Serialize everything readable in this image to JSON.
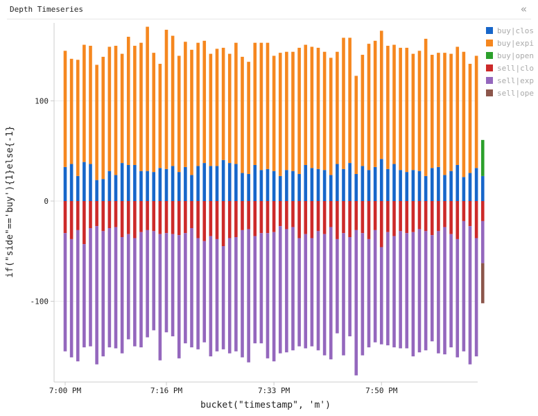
{
  "panel": {
    "title": "Depth Timeseries",
    "collapse_icon": "double-chevron-left-icon"
  },
  "colors": {
    "axis": "#cccccc",
    "tick_text": "#222222",
    "gridline": "#eeeeee"
  },
  "legend": {
    "items": [
      {
        "label": "buy|clos",
        "color": "#1766c9"
      },
      {
        "label": "buy|expi",
        "color": "#f5871f"
      },
      {
        "label": "buy|open",
        "color": "#2ca02c"
      },
      {
        "label": "sell|clo",
        "color": "#cc2a2a"
      },
      {
        "label": "sell|exp",
        "color": "#9467bd"
      },
      {
        "label": "sell|ope",
        "color": "#8c564b"
      }
    ]
  },
  "chart_data": {
    "type": "bar",
    "stacked": true,
    "xlabel": "bucket(\"timestamp\", 'm')",
    "ylabel": "if(\"side\"=='buy'){1}else{-1}",
    "ylim": [
      -180,
      178
    ],
    "yticks": [
      100,
      0,
      -100
    ],
    "x_start_minute": "7:00 PM",
    "x_ticks": [
      {
        "label": "7:00 PM",
        "minute": 0
      },
      {
        "label": "7:16 PM",
        "minute": 16
      },
      {
        "label": "7:33 PM",
        "minute": 33
      },
      {
        "label": "7:50 PM",
        "minute": 50
      }
    ],
    "gridlines": true,
    "series": [
      {
        "name": "buy|clos",
        "color": "#1766c9",
        "values": [
          34,
          37,
          25,
          39,
          37,
          21,
          22,
          30,
          26,
          38,
          36,
          36,
          30,
          30,
          29,
          33,
          32,
          35,
          29,
          34,
          26,
          35,
          38,
          35,
          35,
          41,
          38,
          37,
          28,
          27,
          36,
          31,
          32,
          30,
          25,
          31,
          30,
          27,
          36,
          33,
          32,
          31,
          26,
          37,
          32,
          38,
          27,
          35,
          31,
          34,
          42,
          32,
          37,
          31,
          29,
          31,
          30,
          25,
          33,
          34,
          26,
          30,
          36,
          24,
          28,
          33,
          25
        ]
      },
      {
        "name": "buy|expi",
        "color": "#f5871f",
        "values": [
          116,
          105,
          116,
          117,
          118,
          115,
          122,
          124,
          129,
          109,
          128,
          119,
          128,
          144,
          119,
          104,
          139,
          130,
          116,
          125,
          125,
          123,
          122,
          112,
          117,
          112,
          109,
          121,
          116,
          112,
          122,
          127,
          126,
          115,
          123,
          118,
          119,
          126,
          120,
          121,
          121,
          118,
          117,
          112,
          131,
          125,
          98,
          111,
          126,
          126,
          128,
          123,
          119,
          122,
          124,
          116,
          120,
          137,
          113,
          114,
          122,
          117,
          118,
          125,
          109,
          112,
          0
        ]
      },
      {
        "name": "buy|open",
        "color": "#2ca02c",
        "values": [
          0,
          0,
          0,
          0,
          0,
          0,
          0,
          0,
          0,
          0,
          0,
          0,
          0,
          0,
          0,
          0,
          0,
          0,
          0,
          0,
          0,
          0,
          0,
          0,
          0,
          0,
          0,
          0,
          0,
          0,
          0,
          0,
          0,
          0,
          0,
          0,
          0,
          0,
          0,
          0,
          0,
          0,
          0,
          0,
          0,
          0,
          0,
          0,
          0,
          0,
          0,
          0,
          0,
          0,
          0,
          0,
          0,
          0,
          0,
          0,
          0,
          0,
          0,
          0,
          0,
          0,
          36
        ]
      },
      {
        "name": "sell|clo",
        "color": "#cc2a2a",
        "values": [
          -32,
          -38,
          -29,
          -43,
          -27,
          -25,
          -30,
          -27,
          -26,
          -36,
          -33,
          -37,
          -31,
          -29,
          -30,
          -33,
          -32,
          -33,
          -34,
          -32,
          -27,
          -37,
          -40,
          -35,
          -38,
          -45,
          -37,
          -36,
          -29,
          -28,
          -35,
          -32,
          -32,
          -31,
          -25,
          -28,
          -26,
          -37,
          -33,
          -37,
          -30,
          -33,
          -26,
          -38,
          -32,
          -36,
          -29,
          -32,
          -38,
          -29,
          -46,
          -31,
          -35,
          -30,
          -32,
          -31,
          -28,
          -30,
          -34,
          -30,
          -26,
          -33,
          -38,
          -20,
          -25,
          -37,
          -20
        ]
      },
      {
        "name": "sell|exp",
        "color": "#9467bd",
        "values": [
          -118,
          -118,
          -131,
          -103,
          -118,
          -138,
          -125,
          -119,
          -121,
          -116,
          -105,
          -108,
          -115,
          -107,
          -99,
          -126,
          -99,
          -102,
          -123,
          -110,
          -119,
          -111,
          -101,
          -120,
          -112,
          -103,
          -115,
          -114,
          -127,
          -133,
          -107,
          -110,
          -125,
          -129,
          -127,
          -123,
          -123,
          -108,
          -114,
          -108,
          -119,
          -121,
          -132,
          -94,
          -122,
          -99,
          -145,
          -122,
          -108,
          -112,
          -97,
          -113,
          -111,
          -117,
          -115,
          -124,
          -123,
          -119,
          -106,
          -122,
          -127,
          -113,
          -118,
          -130,
          -138,
          -118,
          -42
        ]
      },
      {
        "name": "sell|ope",
        "color": "#8c564b",
        "values": [
          0,
          0,
          0,
          0,
          0,
          0,
          0,
          0,
          0,
          0,
          0,
          0,
          0,
          0,
          0,
          0,
          0,
          0,
          0,
          0,
          0,
          0,
          0,
          0,
          0,
          0,
          0,
          0,
          0,
          0,
          0,
          0,
          0,
          0,
          0,
          0,
          0,
          0,
          0,
          0,
          0,
          0,
          0,
          0,
          0,
          0,
          0,
          0,
          0,
          0,
          0,
          0,
          0,
          0,
          0,
          0,
          0,
          0,
          0,
          0,
          0,
          0,
          0,
          0,
          0,
          0,
          -40
        ]
      }
    ]
  }
}
